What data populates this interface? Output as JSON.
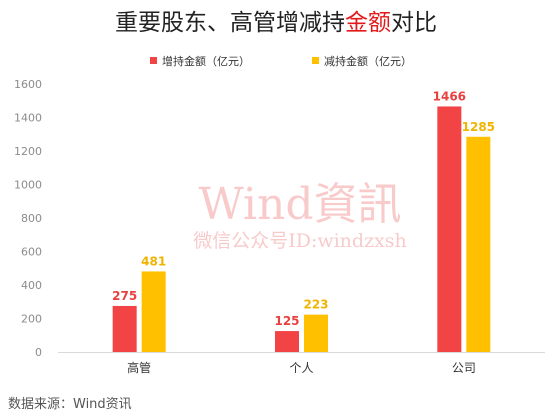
{
  "chart_data": {
    "type": "bar",
    "title_parts": [
      {
        "text": "重要股东、高管增减持",
        "color": "#222222"
      },
      {
        "text": "金额",
        "color": "#e31a1c"
      },
      {
        "text": "对比",
        "color": "#222222"
      }
    ],
    "categories": [
      "高管",
      "个人",
      "公司"
    ],
    "series": [
      {
        "name": "增持金额（亿元）",
        "values": [
          275,
          125,
          1466
        ],
        "color": "#f24444"
      },
      {
        "name": "减持金额（亿元）",
        "values": [
          481,
          223,
          1285
        ],
        "color": "#ffc000"
      }
    ],
    "label_colors": [
      "#e8413f",
      "#f0b400"
    ],
    "ylim": [
      0,
      1600
    ],
    "yticks": [
      0,
      200,
      400,
      600,
      800,
      1000,
      1200,
      1400,
      1600
    ],
    "grid": false,
    "legend_position": "top-center"
  },
  "watermark": {
    "main": "Wind資訊",
    "sub": "微信公众号ID:windzxsh"
  },
  "source": "数据来源：Wind资讯"
}
